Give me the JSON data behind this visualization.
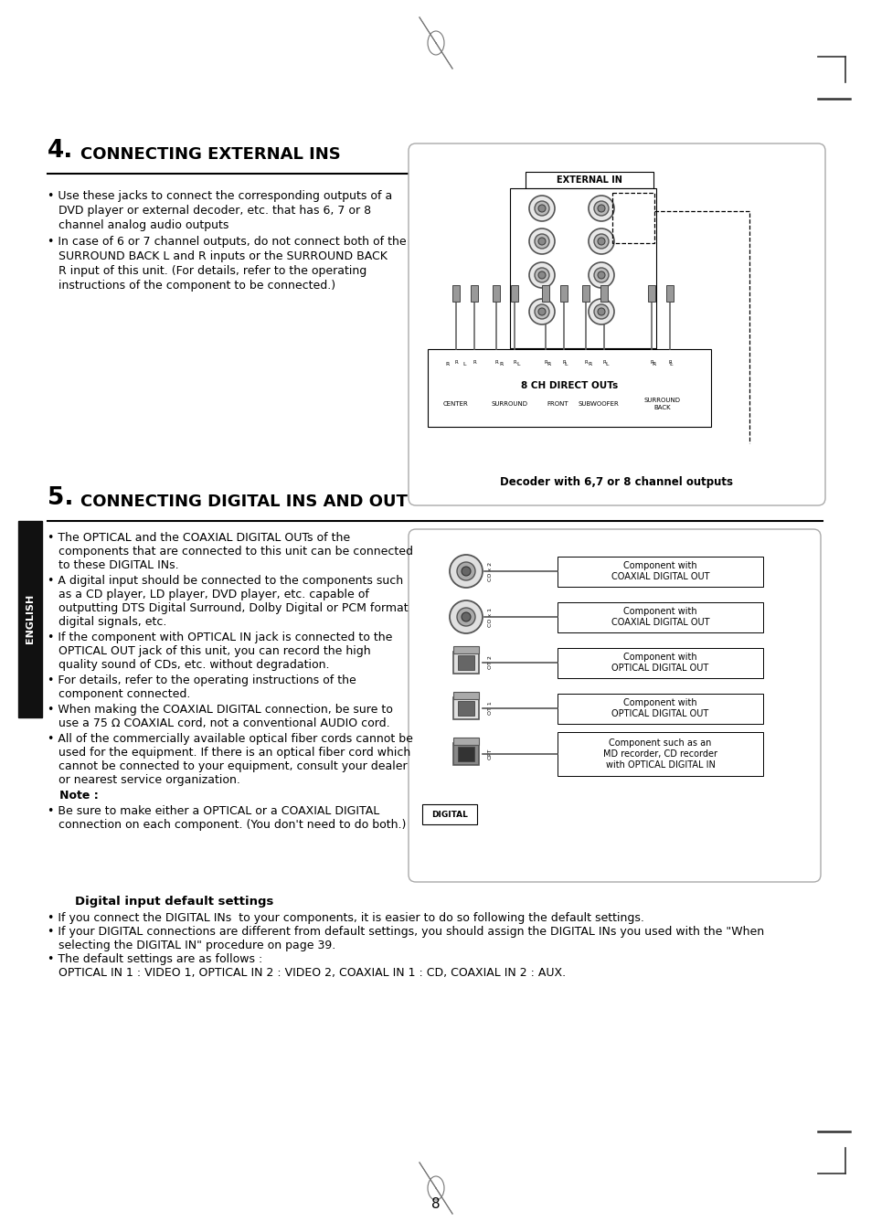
{
  "page_bg": "#ffffff",
  "page_number": "8",
  "sec4_num": "4.",
  "sec4_title": "CONNECTING EXTERNAL INS",
  "sec4_bullet1_lines": [
    "• Use these jacks to connect the corresponding outputs of a",
    "   DVD player or external decoder, etc. that has 6, 7 or 8",
    "   channel analog audio outputs"
  ],
  "sec4_bullet2_lines": [
    "• In case of 6 or 7 channel outputs, do not connect both of the",
    "   SURROUND BACK L and R inputs or the SURROUND BACK",
    "   R input of this unit. (For details, refer to the operating",
    "   instructions of the component to be connected.)"
  ],
  "diag1_external_in": "EXTERNAL IN",
  "diag1_sublabel": "8 CH DIRECT OUTs",
  "diag1_caption": "Decoder with 6,7 or 8 channel outputs",
  "diag1_ch_labels": [
    "CENTER",
    "SURROUND",
    "FRONT",
    "SUBWOOFER",
    "SURROUND\nBACK"
  ],
  "sec5_num": "5.",
  "sec5_title": "CONNECTING DIGITAL INS AND OUT",
  "sec5_bullet_lines": [
    [
      "• The OPTICAL and the COAXIAL DIGITAL OUTs of the",
      "   components that are connected to this unit can be connected",
      "   to these DIGITAL INs."
    ],
    [
      "• A digital input should be connected to the components such",
      "   as a CD player, LD player, DVD player, etc. capable of",
      "   outputting DTS Digital Surround, Dolby Digital or PCM format",
      "   digital signals, etc."
    ],
    [
      "• If the component with OPTICAL IN jack is connected to the",
      "   OPTICAL OUT jack of this unit, you can record the high",
      "   quality sound of CDs, etc. without degradation."
    ],
    [
      "• For details, refer to the operating instructions of the",
      "   component connected."
    ],
    [
      "• When making the COAXIAL DIGITAL connection, be sure to",
      "   use a 75 Ω COAXIAL cord, not a conventional AUDIO cord."
    ],
    [
      "• All of the commercially available optical fiber cords cannot be",
      "   used for the equipment. If there is an optical fiber cord which",
      "   cannot be connected to your equipment, consult your dealer",
      "   or nearest service organization."
    ],
    [
      "   Note :"
    ],
    [
      "• Be sure to make either a OPTICAL or a COAXIAL DIGITAL",
      "   connection on each component. (You don't need to do both.)"
    ]
  ],
  "note_line": "   Note :",
  "diag2_comp_labels": [
    "Component with\nCOAXIAL DIGITAL OUT",
    "Component with\nCOAXIAL DIGITAL OUT",
    "Component with\nOPTICAL DIGITAL OUT",
    "Component with\nOPTICAL DIGITAL OUT",
    "Component such as an\nMD recorder, CD recorder\nwith OPTICAL DIGITAL IN"
  ],
  "diag2_digital": "DIGITAL",
  "dds_title": "Digital input default settings",
  "dds_lines": [
    "• If you connect the DIGITAL INs  to your components, it is easier to do so following the default settings.",
    "• If your DIGITAL connections are different from default settings, you should assign the DIGITAL INs you used with the \"When",
    "   selecting the DIGITAL IN\" procedure on page 39.",
    "• The default settings are as follows :",
    "   OPTICAL IN 1 : VIDEO 1, OPTICAL IN 2 : VIDEO 2, COAXIAL IN 1 : CD, COAXIAL IN 2 : AUX."
  ],
  "english_label": "ENGLISH",
  "line_color": "#000000",
  "bg_color": "#ffffff",
  "text_color": "#000000",
  "gray_color": "#aaaaaa",
  "dark_gray": "#444444"
}
